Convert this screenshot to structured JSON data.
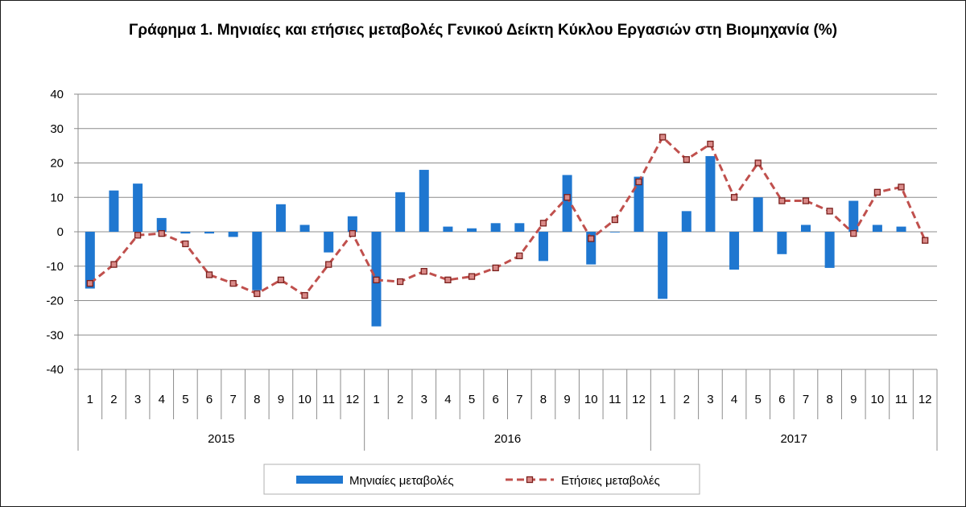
{
  "chart_data": {
    "type": "bar+line",
    "title": "Γράφημα 1. Μηνιαίες και ετήσιες μεταβολές  Γενικού Δείκτη Κύκλου Εργασιών στη Βιομηχανία (%)",
    "ylim": [
      -40,
      40
    ],
    "yticks": [
      40,
      30,
      20,
      10,
      0,
      -10,
      -20,
      -30,
      -40
    ],
    "grid": true,
    "months": [
      "1",
      "2",
      "3",
      "4",
      "5",
      "6",
      "7",
      "8",
      "9",
      "10",
      "11",
      "12"
    ],
    "years": [
      "2015",
      "2016",
      "2017"
    ],
    "series": [
      {
        "name": "Μηνιαίες μεταβολές",
        "type": "bar",
        "color": "#1f77d0",
        "values": [
          -16.5,
          12,
          14,
          4,
          -0.5,
          -0.5,
          -1.5,
          -17,
          8,
          2,
          -6,
          4.5,
          -27.5,
          11.5,
          18,
          1.5,
          1,
          2.5,
          2.5,
          -8.5,
          16.5,
          -9.5,
          0,
          16,
          -19.5,
          6,
          22,
          -11,
          10,
          -6.5,
          2,
          -10.5,
          9,
          2,
          1.5,
          null
        ]
      },
      {
        "name": "Ετήσιες μεταβολές",
        "type": "line",
        "color": "#c0504d",
        "values": [
          -15,
          -9.5,
          -1,
          -0.5,
          -3.5,
          -12.5,
          -15,
          -18,
          -14,
          -18.5,
          -9.5,
          -0.5,
          -14,
          -14.5,
          -11.5,
          -14,
          -13,
          -10.5,
          -7,
          2.5,
          10,
          -2,
          3.5,
          14.5,
          27.5,
          21,
          25.5,
          10,
          20,
          9,
          9,
          6,
          -0.5,
          11.5,
          13,
          -2.5
        ]
      }
    ],
    "legend": {
      "position": "bottom",
      "entries": [
        "Μηνιαίες μεταβολές",
        "Ετήσιες μεταβολές"
      ]
    }
  }
}
